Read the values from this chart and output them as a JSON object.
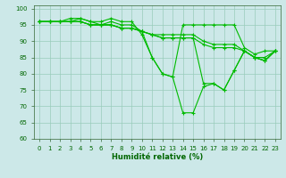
{
  "xlabel": "Humidité relative (%)",
  "background_color": "#cce8e8",
  "grid_color": "#99ccbb",
  "line_color": "#00bb00",
  "xlim": [
    -0.5,
    23.5
  ],
  "ylim": [
    60,
    101
  ],
  "yticks": [
    60,
    65,
    70,
    75,
    80,
    85,
    90,
    95,
    100
  ],
  "xticks": [
    0,
    1,
    2,
    3,
    4,
    5,
    6,
    7,
    8,
    9,
    10,
    11,
    12,
    13,
    14,
    15,
    16,
    17,
    18,
    19,
    20,
    21,
    22,
    23
  ],
  "series": [
    [
      96,
      96,
      96,
      96,
      97,
      96,
      96,
      97,
      96,
      96,
      92,
      85,
      80,
      79,
      95,
      95,
      95,
      95,
      95,
      95,
      88,
      86,
      87,
      87
    ],
    [
      96,
      96,
      96,
      97,
      97,
      96,
      95,
      96,
      95,
      95,
      93,
      92,
      92,
      92,
      92,
      92,
      90,
      89,
      89,
      89,
      87,
      85,
      84,
      87
    ],
    [
      96,
      96,
      96,
      96,
      96,
      95,
      95,
      95,
      94,
      94,
      93,
      92,
      91,
      91,
      91,
      91,
      89,
      88,
      88,
      88,
      87,
      85,
      85,
      87
    ],
    [
      96,
      96,
      96,
      96,
      96,
      95,
      95,
      95,
      94,
      94,
      93,
      92,
      91,
      91,
      91,
      91,
      77,
      77,
      75,
      81,
      87,
      85,
      84,
      87
    ],
    [
      96,
      96,
      96,
      96,
      96,
      95,
      95,
      95,
      94,
      94,
      93,
      85,
      80,
      79,
      68,
      68,
      76,
      77,
      75,
      81,
      87,
      85,
      84,
      87
    ]
  ]
}
